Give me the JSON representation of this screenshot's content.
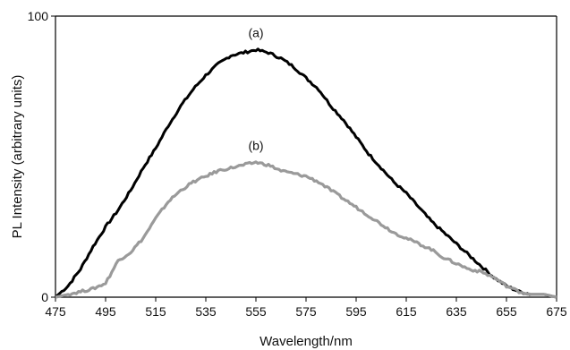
{
  "chart_data": {
    "type": "line",
    "title": "",
    "xlabel": "Wavelength/nm",
    "ylabel": "PL Intensity (arbitrary units)",
    "xlim": [
      475,
      675
    ],
    "ylim": [
      0,
      100
    ],
    "x_ticks": [
      475,
      495,
      515,
      535,
      555,
      575,
      595,
      615,
      635,
      655,
      675
    ],
    "y_ticks": [
      0,
      100
    ],
    "grid": false,
    "legend": "none",
    "series": [
      {
        "label": "(a)",
        "color": "#000000",
        "x": [
          475,
          480,
          485,
          490,
          495,
          500,
          505,
          510,
          515,
          520,
          525,
          530,
          535,
          540,
          545,
          550,
          555,
          560,
          565,
          570,
          575,
          580,
          585,
          590,
          595,
          600,
          605,
          610,
          615,
          620,
          625,
          630,
          635,
          640,
          645,
          650,
          655,
          660,
          665,
          670,
          675
        ],
        "y": [
          0,
          4,
          10,
          18,
          25,
          31,
          38,
          46,
          53,
          61,
          68,
          74,
          79,
          83,
          86,
          87,
          88,
          87,
          85,
          82,
          78,
          74,
          68,
          63,
          57,
          51,
          46,
          41,
          37,
          32,
          27,
          23,
          19,
          15,
          11,
          7,
          4,
          2,
          1,
          1,
          0
        ]
      },
      {
        "label": "(b)",
        "color": "#9a9a9a",
        "x": [
          475,
          480,
          485,
          490,
          495,
          500,
          505,
          510,
          515,
          520,
          525,
          530,
          535,
          540,
          545,
          550,
          555,
          560,
          565,
          570,
          575,
          580,
          585,
          590,
          595,
          600,
          605,
          610,
          615,
          620,
          625,
          630,
          635,
          640,
          645,
          650,
          655,
          660,
          665,
          670,
          675
        ],
        "y": [
          0,
          1,
          2,
          3,
          5,
          13,
          16,
          21,
          28,
          34,
          38,
          41,
          43,
          45,
          46,
          47,
          48,
          47,
          45,
          44,
          43,
          41,
          38,
          35,
          32,
          29,
          26,
          23,
          21,
          19,
          17,
          14,
          12,
          10,
          9,
          7,
          4,
          2,
          1,
          1,
          0
        ]
      }
    ]
  }
}
